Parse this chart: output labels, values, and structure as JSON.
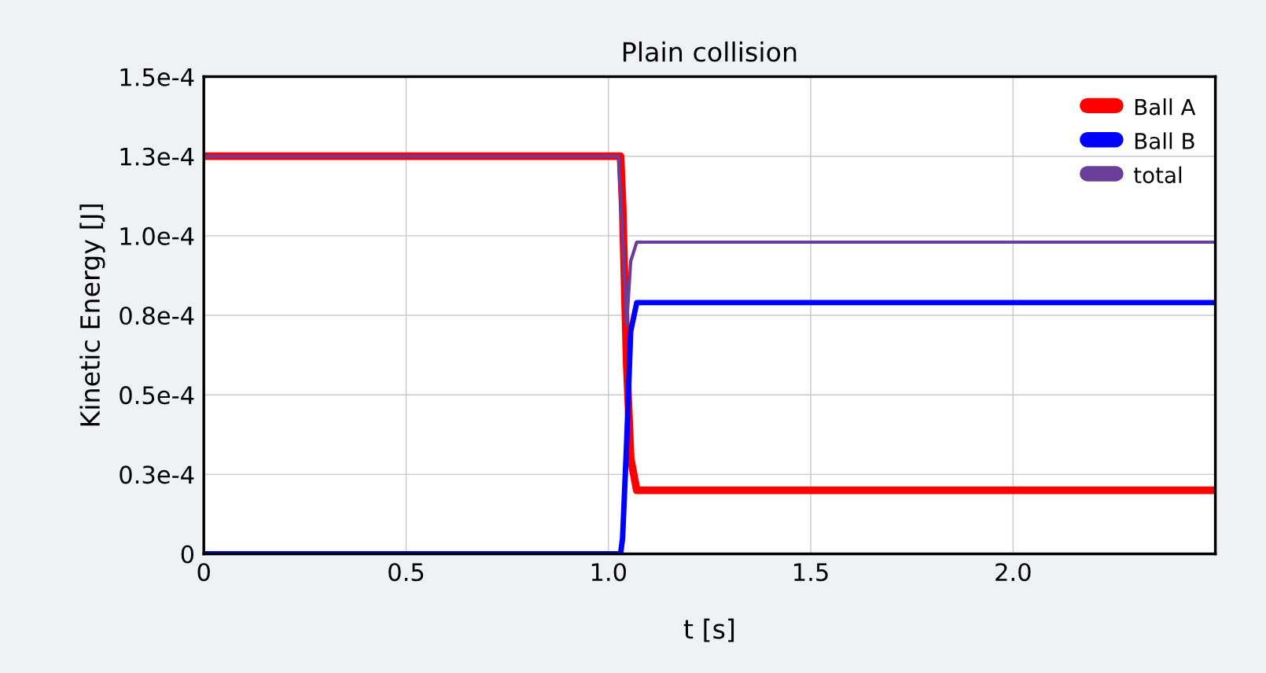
{
  "chart_data": {
    "type": "line",
    "title": "Plain collision",
    "xlabel": "t [s]",
    "ylabel": "Kinetic Energy [J]",
    "xlim": [
      0,
      2.5
    ],
    "xticks": [
      0,
      0.5,
      {
        "value": 1.0,
        "label": "1.0"
      },
      1.5,
      {
        "value": 2.0,
        "label": "2.0"
      }
    ],
    "ylim": [
      0,
      0.00015
    ],
    "yticks": [
      0,
      {
        "value": 2.5e-05,
        "label": "0.3e-4"
      },
      {
        "value": 5e-05,
        "label": "0.5e-4"
      },
      {
        "value": 7.5e-05,
        "label": "0.8e-4"
      },
      {
        "value": 0.0001,
        "label": "1.0e-4"
      },
      {
        "value": 0.000125,
        "label": "1.3e-4"
      },
      {
        "value": 0.00015,
        "label": "1.5e-4"
      }
    ],
    "grid": true,
    "legend": "top right",
    "marker": "none",
    "line_style": "solid",
    "series": [
      {
        "name": "Ball A",
        "color": "#ff0000",
        "x": [
          0,
          1.03,
          1.035,
          1.045,
          1.055,
          1.07,
          2.5
        ],
        "values": [
          0.000125,
          0.000125,
          0.00011,
          6e-05,
          3e-05,
          2e-05,
          2e-05
        ]
      },
      {
        "name": "Ball B",
        "color": "#0000ff",
        "x": [
          0,
          1.03,
          1.035,
          1.045,
          1.055,
          1.07,
          2.5
        ],
        "values": [
          0,
          0,
          5e-06,
          3.5e-05,
          7e-05,
          7.9e-05,
          7.9e-05
        ]
      },
      {
        "name": "total",
        "color": "#6a3d9a",
        "x": [
          0,
          1.025,
          1.035,
          1.045,
          1.055,
          1.07,
          2.5
        ],
        "values": [
          0.000125,
          0.000125,
          0.0001,
          7.2e-05,
          9.2e-05,
          9.8e-05,
          9.8e-05
        ]
      }
    ]
  }
}
